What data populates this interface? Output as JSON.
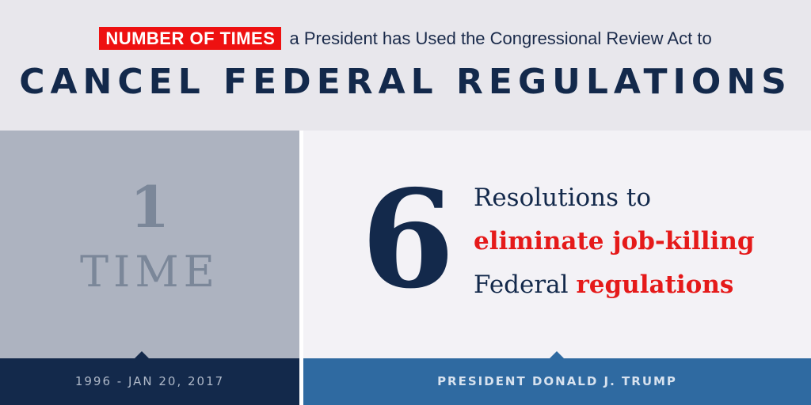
{
  "header": {
    "tag": "NUMBER OF TIMES",
    "subline": "a President has Used the Congressional Review Act to",
    "headline": "CANCEL FEDERAL REGULATIONS"
  },
  "left": {
    "number": "1",
    "word": "TIME",
    "period": "1996 - JAN 20, 2017"
  },
  "right": {
    "number": "6",
    "line1": "Resolutions to",
    "line2": "eliminate job-killing",
    "line3_plain": "Federal",
    "line3_red": "regulations",
    "label": "PRESIDENT DONALD J. TRUMP"
  },
  "colors": {
    "navy": "#13294b",
    "red": "#e51a1a",
    "blue": "#2f6aa1",
    "gray": "#adb3c0"
  }
}
